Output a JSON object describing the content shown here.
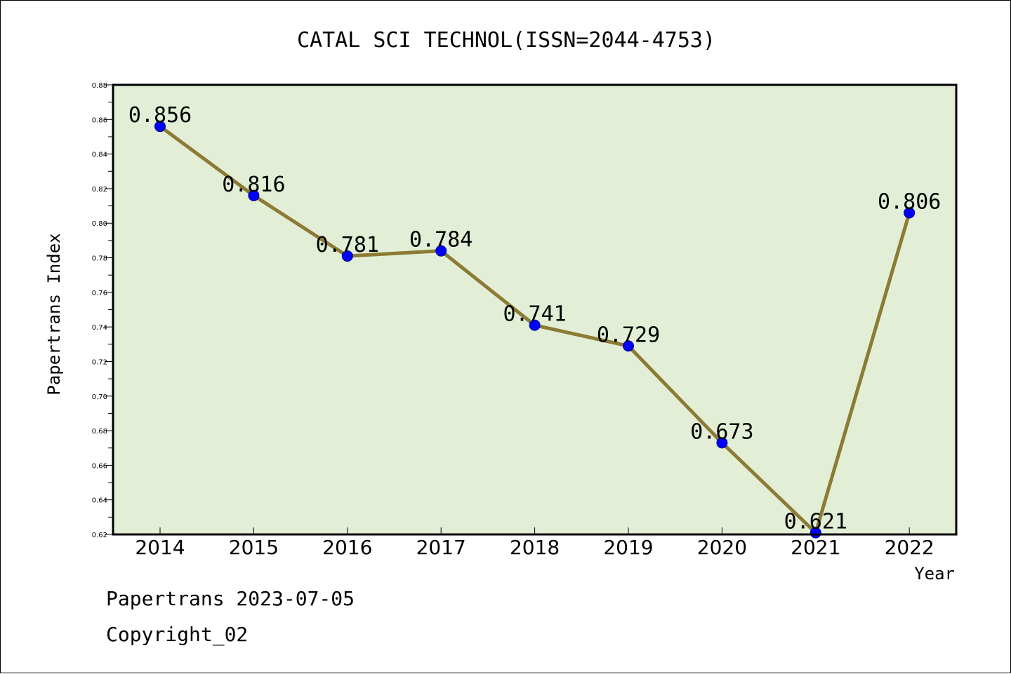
{
  "chart_data": {
    "type": "line",
    "title": "CATAL SCI TECHNOL(ISSN=2044-4753)",
    "xlabel": "Year",
    "ylabel": "Papertrans Index",
    "categories": [
      "2014",
      "2015",
      "2016",
      "2017",
      "2018",
      "2019",
      "2020",
      "2021",
      "2022"
    ],
    "values": [
      0.856,
      0.816,
      0.781,
      0.784,
      0.741,
      0.729,
      0.673,
      0.621,
      0.806
    ],
    "data_labels": [
      "0.856",
      "0.816",
      "0.781",
      "0.784",
      "0.741",
      "0.729",
      "0.673",
      "0.621",
      "0.806"
    ],
    "ylim": [
      0.62,
      0.88
    ],
    "yticks": [
      "0.62",
      "0.64",
      "0.66",
      "0.68",
      "0.70",
      "0.72",
      "0.74",
      "0.76",
      "0.78",
      "0.80",
      "0.82",
      "0.84",
      "0.86",
      "0.88"
    ],
    "grid": false,
    "colors": {
      "plot_background": "#e2efd6",
      "line": "#8c7a35",
      "marker": "#0000ff"
    }
  },
  "footer": {
    "line1": "Papertrans 2023-07-05",
    "line2": "Copyright_02"
  }
}
